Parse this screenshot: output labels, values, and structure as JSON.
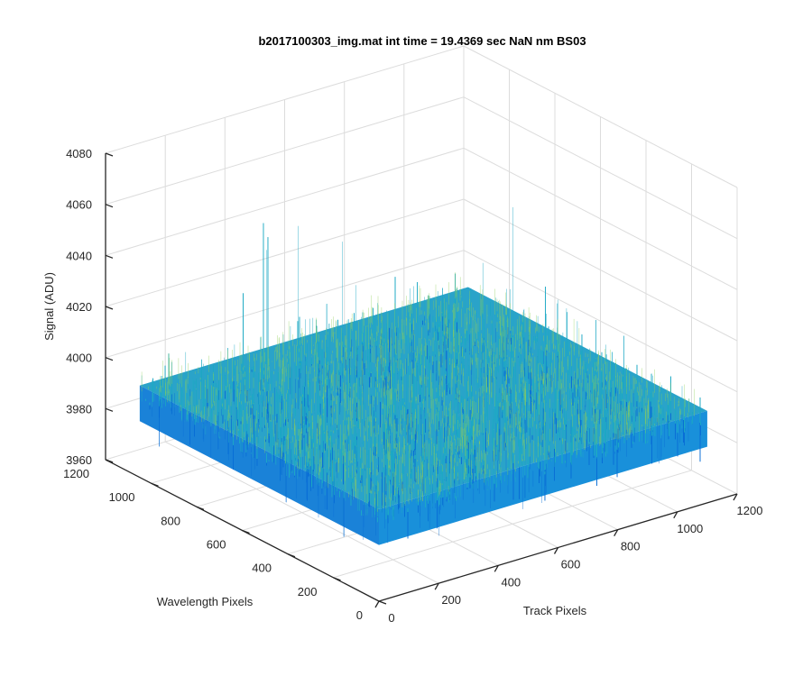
{
  "chart_data": {
    "type": "surface",
    "title": "b2017100303_img.mat int time = 19.4369 sec  NaN nm BS03",
    "xlabel": "Track Pixels",
    "ylabel": "Wavelength Pixels",
    "zlabel": "Signal (ADU)",
    "xlim": [
      0,
      1200
    ],
    "ylim": [
      0,
      1200
    ],
    "zlim": [
      3960,
      4080
    ],
    "x_ticks": [
      "0",
      "200",
      "400",
      "600",
      "800",
      "1000",
      "1200"
    ],
    "y_ticks": [
      "0",
      "200",
      "400",
      "600",
      "800",
      "1000",
      "1200"
    ],
    "z_ticks": [
      "3960",
      "3980",
      "4000",
      "4020",
      "4040",
      "4060",
      "4080"
    ],
    "data_extent": {
      "x": [
        0,
        1100
      ],
      "y": [
        0,
        1050
      ]
    },
    "surface_level": {
      "mean": 3990,
      "spread_low": 3970,
      "spread_high": 4040
    },
    "grid": true,
    "colormap": "parula",
    "colors": {
      "low": "#0a6fd6",
      "mid": "#1ea9c4",
      "high": "#8fcf5a"
    }
  }
}
